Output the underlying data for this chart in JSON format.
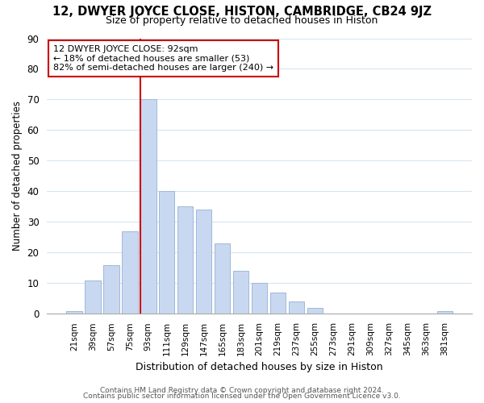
{
  "title": "12, DWYER JOYCE CLOSE, HISTON, CAMBRIDGE, CB24 9JZ",
  "subtitle": "Size of property relative to detached houses in Histon",
  "xlabel": "Distribution of detached houses by size in Histon",
  "ylabel": "Number of detached properties",
  "bar_color": "#c8d8f0",
  "bar_edge_color": "#a0b8d8",
  "bins": [
    "21sqm",
    "39sqm",
    "57sqm",
    "75sqm",
    "93sqm",
    "111sqm",
    "129sqm",
    "147sqm",
    "165sqm",
    "183sqm",
    "201sqm",
    "219sqm",
    "237sqm",
    "255sqm",
    "273sqm",
    "291sqm",
    "309sqm",
    "327sqm",
    "345sqm",
    "363sqm",
    "381sqm"
  ],
  "values": [
    1,
    11,
    16,
    27,
    70,
    40,
    35,
    34,
    23,
    14,
    10,
    7,
    4,
    2,
    0,
    0,
    0,
    0,
    0,
    0,
    1
  ],
  "ylim": [
    0,
    90
  ],
  "yticks": [
    0,
    10,
    20,
    30,
    40,
    50,
    60,
    70,
    80,
    90
  ],
  "property_line_bin_index": 4,
  "property_line_color": "#cc0000",
  "annotation_line1": "12 DWYER JOYCE CLOSE: 92sqm",
  "annotation_line2": "← 18% of detached houses are smaller (53)",
  "annotation_line3": "82% of semi-detached houses are larger (240) →",
  "annotation_box_color": "#ffffff",
  "annotation_box_edge": "#cc0000",
  "footer1": "Contains HM Land Registry data © Crown copyright and database right 2024.",
  "footer2": "Contains public sector information licensed under the Open Government Licence v3.0.",
  "background_color": "#ffffff",
  "grid_color": "#d8e4f0"
}
